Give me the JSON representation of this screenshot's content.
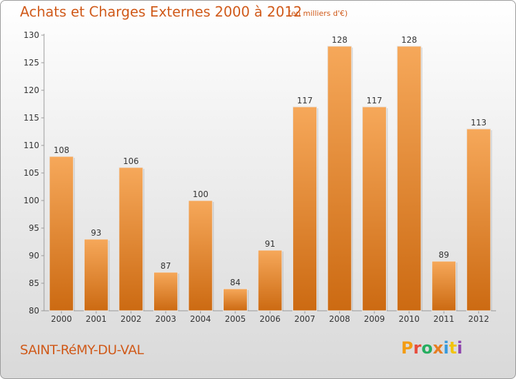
{
  "header": {
    "title": "Achats et Charges Externes 2000 à 2012",
    "subtitle": "(en milliers d'€)"
  },
  "footer": {
    "city": "SAINT-RéMY-DU-VAL",
    "logo": "Proxiti",
    "logo_colors": [
      "#f39c12",
      "#e74c3c",
      "#27ae60",
      "#e67e22",
      "#3498db",
      "#f1c40f",
      "#8e44ad"
    ]
  },
  "chart_data": {
    "type": "bar",
    "categories": [
      "2000",
      "2001",
      "2002",
      "2003",
      "2004",
      "2005",
      "2006",
      "2007",
      "2008",
      "2009",
      "2010",
      "2011",
      "2012"
    ],
    "values": [
      108,
      93,
      106,
      87,
      100,
      84,
      91,
      117,
      128,
      117,
      128,
      89,
      113
    ],
    "data_labels": [
      "108",
      "93",
      "106",
      "87",
      "100",
      "84",
      "91",
      "117",
      "128",
      "117",
      "128",
      "89",
      "113"
    ],
    "yticks": [
      "80",
      "85",
      "90",
      "95",
      "100",
      "105",
      "110",
      "115",
      "120",
      "125",
      "130"
    ],
    "ylim": [
      80,
      130
    ],
    "grid": false,
    "bar_color_top": "#f6a85a",
    "bar_color_bottom": "#cc6a12"
  }
}
